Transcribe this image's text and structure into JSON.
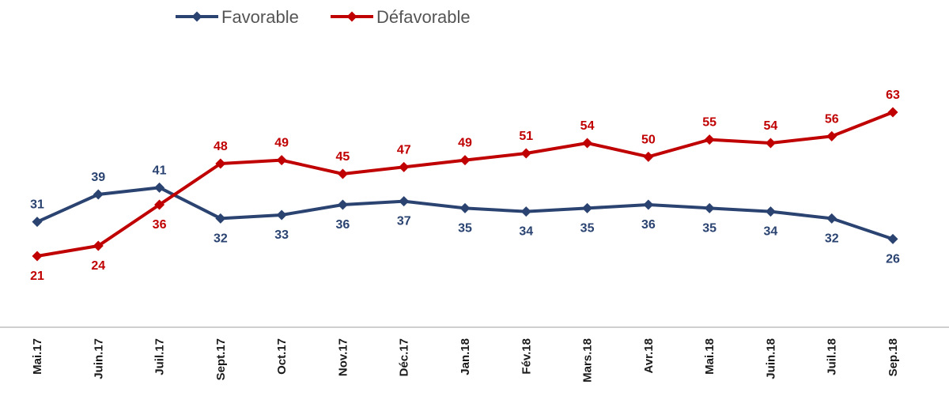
{
  "chart_data": {
    "type": "line",
    "title": "",
    "xlabel": "",
    "ylabel": "",
    "legend_position": "top-left",
    "grid": false,
    "ylim": [
      15,
      70
    ],
    "categories": [
      "Mai.17",
      "Juin.17",
      "Juil.17",
      "Sept.17",
      "Oct.17",
      "Nov.17",
      "Déc.17",
      "Jan.18",
      "Fév.18",
      "Mars.18",
      "Avr.18",
      "Mai.18",
      "Juin.18",
      "Juil.18",
      "Sep.18"
    ],
    "series": [
      {
        "name": "Favorable",
        "color": "#2a4371",
        "values": [
          31,
          39,
          41,
          32,
          33,
          36,
          37,
          35,
          34,
          35,
          36,
          35,
          34,
          32,
          26
        ]
      },
      {
        "name": "Défavorable",
        "color": "#c00000",
        "values": [
          21,
          24,
          36,
          48,
          49,
          45,
          47,
          49,
          51,
          54,
          50,
          55,
          54,
          56,
          63
        ]
      }
    ]
  }
}
